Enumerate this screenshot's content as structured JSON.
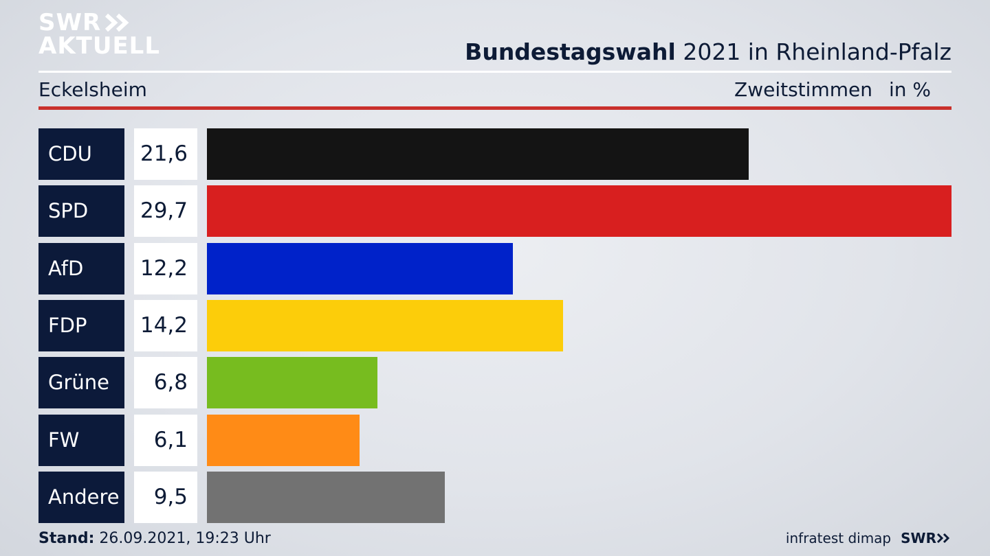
{
  "brand": {
    "line1": "SWR",
    "line2": "AKTUELL",
    "footer_logo": "SWR"
  },
  "header": {
    "title_bold": "Bundestagswahl",
    "title_rest": "2021 in Rheinland-Pfalz"
  },
  "subheader": {
    "region": "Eckelsheim",
    "metric": "Zweitstimmen",
    "unit": "in %"
  },
  "footer": {
    "stand_label": "Stand:",
    "stand_value": "26.09.2021, 19:23 Uhr",
    "source": "infratest dimap"
  },
  "colors": {
    "accent_red": "#c9302c",
    "party_box": "#0c1a3a"
  },
  "chart_data": {
    "type": "bar",
    "orientation": "horizontal",
    "categories": [
      "CDU",
      "SPD",
      "AfD",
      "FDP",
      "Grüne",
      "FW",
      "Andere"
    ],
    "values": [
      21.6,
      29.7,
      12.2,
      14.2,
      6.8,
      6.1,
      9.5
    ],
    "value_labels": [
      "21,6",
      "29,7",
      "12,2",
      "14,2",
      "6,8",
      "6,1",
      "9,5"
    ],
    "colors": [
      "#141414",
      "#d81f1f",
      "#0022c9",
      "#fccd0a",
      "#77bc1f",
      "#ff8b16",
      "#727272"
    ],
    "xlim": [
      0,
      29.7
    ]
  }
}
